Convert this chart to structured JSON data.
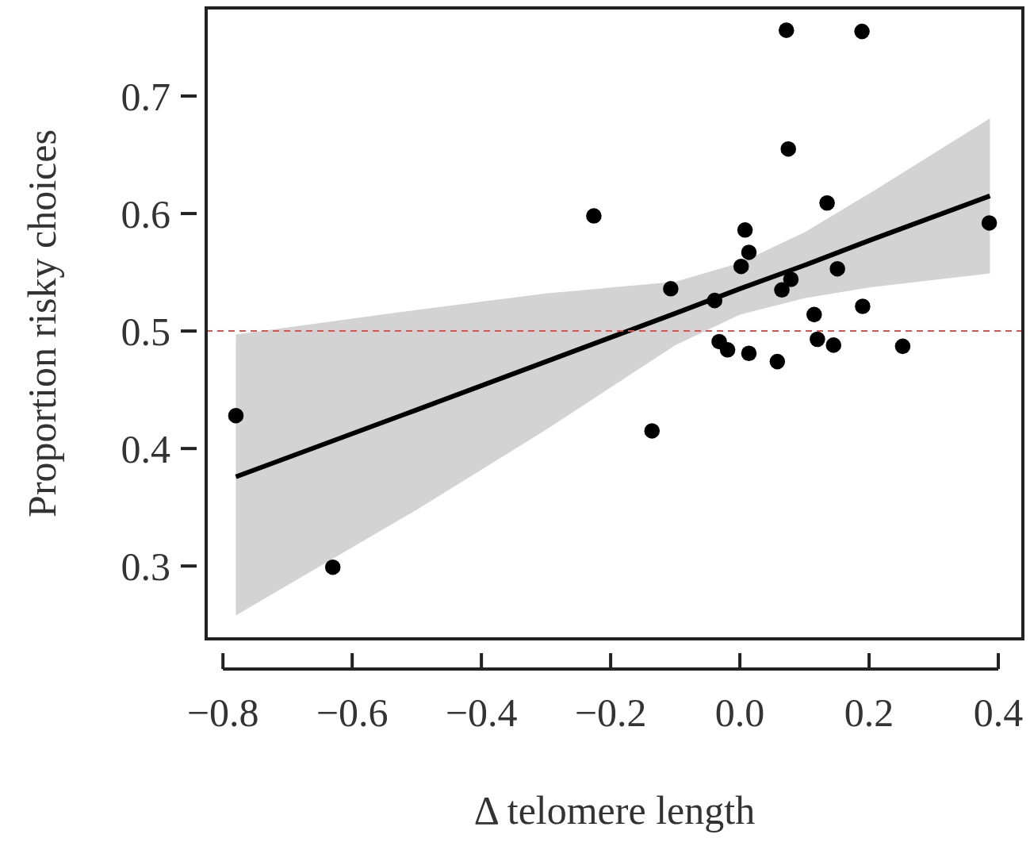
{
  "chart_data": {
    "type": "scatter",
    "xlabel": "Δ telomere length",
    "ylabel": "Proportion risky choices",
    "xlim": [
      -0.826,
      0.438
    ],
    "ylim": [
      0.238,
      0.775
    ],
    "xticks": [
      {
        "value": -0.8,
        "label": "−0.8"
      },
      {
        "value": -0.6,
        "label": "−0.6"
      },
      {
        "value": -0.4,
        "label": "−0.4"
      },
      {
        "value": -0.2,
        "label": "−0.2"
      },
      {
        "value": 0,
        "label": "0.0"
      },
      {
        "value": 0.2,
        "label": "0.2"
      },
      {
        "value": 0.4,
        "label": "0.4"
      }
    ],
    "yticks": [
      0.3,
      0.4,
      0.5,
      0.6,
      0.7
    ],
    "grid": false,
    "marker": "circle",
    "ref_lines": [
      {
        "axis": "y",
        "value": 0.5,
        "color": "#d9534f",
        "line_style": "dashed"
      }
    ],
    "series": [
      {
        "color": "#000000",
        "x": [
          -0.78,
          -0.63,
          -0.226,
          -0.136,
          -0.107,
          -0.039,
          -0.032,
          -0.019,
          0.002,
          0.008,
          0.014,
          0.014,
          0.058,
          0.065,
          0.079,
          0.072,
          0.075,
          0.135,
          0.115,
          0.12,
          0.145,
          0.151,
          0.19,
          0.189,
          0.252,
          0.386
        ],
        "values": [
          0.428,
          0.299,
          0.598,
          0.415,
          0.536,
          0.526,
          0.491,
          0.484,
          0.555,
          0.586,
          0.567,
          0.481,
          0.474,
          0.535,
          0.544,
          0.756,
          0.655,
          0.609,
          0.514,
          0.493,
          0.488,
          0.553,
          0.521,
          0.755,
          0.487,
          0.592
        ]
      },
      {
        "type": "line",
        "color": "#000000",
        "marker": "none",
        "x": [
          -0.78,
          -0.5,
          -0.3,
          -0.1,
          0,
          0.1,
          0.2,
          0.387
        ],
        "values": [
          0.376,
          0.433,
          0.474,
          0.515,
          0.536,
          0.556,
          0.577,
          0.615
        ],
        "lower": [
          0.258,
          0.348,
          0.416,
          0.488,
          0.514,
          0.528,
          0.537,
          0.549
        ],
        "upper": [
          0.497,
          0.518,
          0.532,
          0.542,
          0.558,
          0.584,
          0.617,
          0.681
        ]
      }
    ]
  }
}
